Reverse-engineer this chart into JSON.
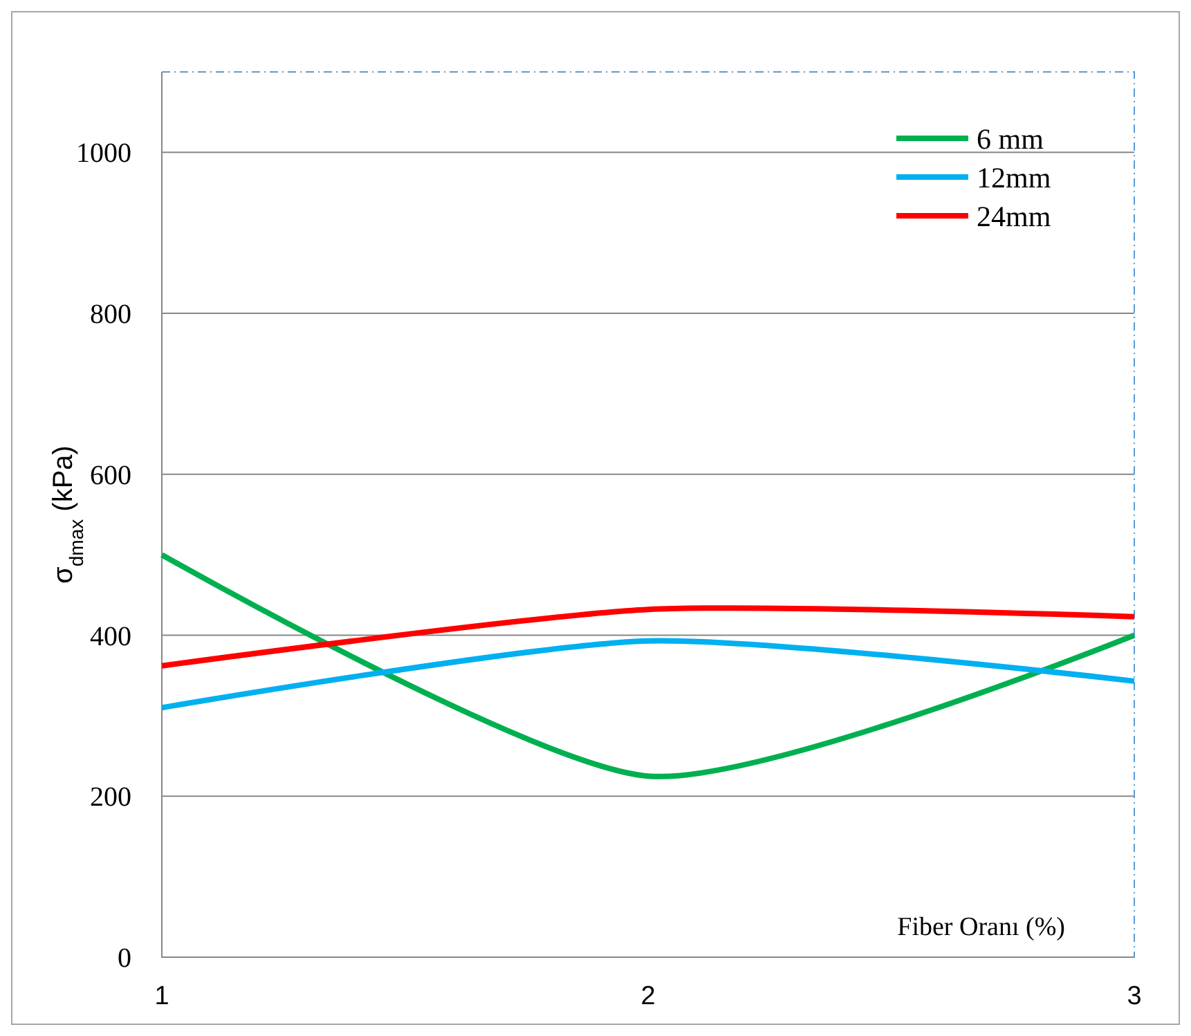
{
  "chart_data": {
    "type": "line",
    "xlabel": "Fiber Oranı (%)",
    "ylabel": "σ$_{dmax}$ (kPa)",
    "x": [
      1,
      2,
      3
    ],
    "xlim": [
      1,
      3
    ],
    "xticks": [
      1,
      2,
      3
    ],
    "ylim": [
      0,
      1100
    ],
    "yticks": [
      0,
      200,
      400,
      600,
      800,
      1000
    ],
    "grid": "y",
    "legend": "top right",
    "marker": "none",
    "line_style": "solid",
    "series": [
      {
        "name": "6 mm",
        "color": "#00b050",
        "values": [
          500,
          225,
          400
        ]
      },
      {
        "name": "12mm",
        "color": "#00b0f0",
        "values": [
          310,
          393,
          343
        ]
      },
      {
        "name": "24mm",
        "color": "#ff0000",
        "values": [
          362,
          432,
          423
        ]
      }
    ]
  }
}
